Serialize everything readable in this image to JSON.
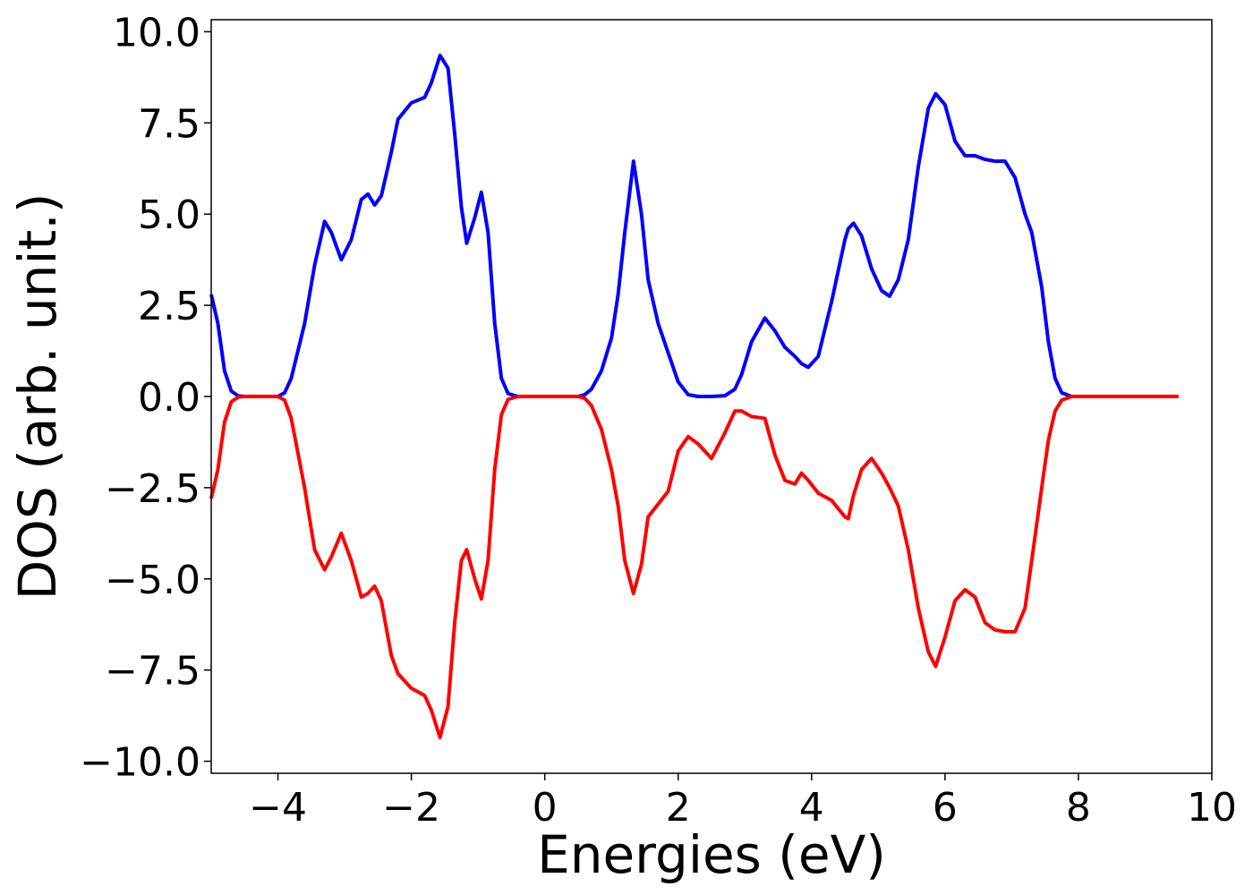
{
  "chart_data": {
    "type": "line",
    "xlabel": "Energies (eV)",
    "ylabel": "DOS (arb. unit.)",
    "x": [
      -5,
      -4.9,
      -4.8,
      -4.7,
      -4.6,
      -4.5,
      -4.0,
      -3.9,
      -3.8,
      -3.6,
      -3.45,
      -3.3,
      -3.2,
      -3.05,
      -2.9,
      -2.75,
      -2.65,
      -2.55,
      -2.45,
      -2.3,
      -2.2,
      -2.0,
      -1.8,
      -1.7,
      -1.57,
      -1.45,
      -1.35,
      -1.25,
      -1.17,
      -1.05,
      -0.95,
      -0.85,
      -0.75,
      -0.65,
      -0.55,
      -0.4,
      0.5,
      0.6,
      0.7,
      0.85,
      1.0,
      1.1,
      1.2,
      1.33,
      1.45,
      1.55,
      1.7,
      1.85,
      2.0,
      2.15,
      2.3,
      2.5,
      2.7,
      2.85,
      2.95,
      3.1,
      3.3,
      3.45,
      3.6,
      3.75,
      3.85,
      3.95,
      4.1,
      4.3,
      4.5,
      4.55,
      4.63,
      4.75,
      4.9,
      5.05,
      5.17,
      5.3,
      5.45,
      5.6,
      5.75,
      5.86,
      6.0,
      6.15,
      6.3,
      6.45,
      6.6,
      6.75,
      6.9,
      7.05,
      7.2,
      7.3,
      7.45,
      7.55,
      7.65,
      7.75,
      7.9,
      8.5,
      9.5
    ],
    "series": [
      {
        "color": "#0000ff",
        "values": [
          2.8,
          2.0,
          0.7,
          0.15,
          0.02,
          0,
          0,
          0.1,
          0.5,
          2.0,
          3.6,
          4.8,
          4.5,
          3.75,
          4.3,
          5.4,
          5.55,
          5.25,
          5.5,
          6.7,
          7.6,
          8.05,
          8.2,
          8.6,
          9.35,
          9.0,
          7.2,
          5.2,
          4.2,
          4.9,
          5.6,
          4.5,
          2.0,
          0.5,
          0.08,
          0,
          0,
          0.05,
          0.2,
          0.7,
          1.6,
          2.8,
          4.5,
          6.45,
          5.0,
          3.2,
          2.0,
          1.2,
          0.4,
          0.05,
          0,
          0,
          0.02,
          0.2,
          0.6,
          1.5,
          2.15,
          1.8,
          1.35,
          1.1,
          0.9,
          0.8,
          1.1,
          2.6,
          4.3,
          4.6,
          4.75,
          4.4,
          3.5,
          2.9,
          2.75,
          3.2,
          4.3,
          6.3,
          7.9,
          8.3,
          8.0,
          7.0,
          6.6,
          6.6,
          6.5,
          6.45,
          6.45,
          6.0,
          5.0,
          4.5,
          3.0,
          1.5,
          0.5,
          0.1,
          0,
          0,
          0
        ]
      },
      {
        "color": "#ff0000",
        "values": [
          -2.8,
          -2.0,
          -0.7,
          -0.15,
          -0.02,
          0,
          0,
          -0.1,
          -0.6,
          -2.5,
          -4.2,
          -4.75,
          -4.4,
          -3.75,
          -4.5,
          -5.5,
          -5.4,
          -5.2,
          -5.6,
          -7.1,
          -7.6,
          -8.0,
          -8.2,
          -8.6,
          -9.35,
          -8.5,
          -6.2,
          -4.5,
          -4.2,
          -5.0,
          -5.55,
          -4.5,
          -2.0,
          -0.5,
          -0.08,
          0,
          0,
          -0.05,
          -0.25,
          -0.9,
          -2.0,
          -3.0,
          -4.5,
          -5.4,
          -4.6,
          -3.3,
          -2.95,
          -2.6,
          -1.5,
          -1.1,
          -1.3,
          -1.7,
          -1.0,
          -0.4,
          -0.4,
          -0.55,
          -0.6,
          -1.6,
          -2.3,
          -2.4,
          -2.1,
          -2.3,
          -2.65,
          -2.85,
          -3.3,
          -3.35,
          -2.7,
          -2.0,
          -1.7,
          -2.1,
          -2.5,
          -3.0,
          -4.2,
          -5.8,
          -7.0,
          -7.4,
          -6.6,
          -5.6,
          -5.3,
          -5.5,
          -6.2,
          -6.4,
          -6.45,
          -6.45,
          -5.8,
          -4.5,
          -2.5,
          -1.2,
          -0.4,
          -0.1,
          0,
          0,
          0
        ]
      }
    ],
    "xlim": [
      -5,
      10
    ],
    "ylim": [
      -10.33,
      10.33
    ],
    "xticks": [
      {
        "value": -4,
        "label": "−4"
      },
      {
        "value": -2,
        "label": "−2"
      },
      0,
      2,
      4,
      6,
      8,
      10
    ],
    "yticks": [
      {
        "value": -10,
        "label": "−10.0"
      },
      {
        "value": -7.5,
        "label": "−7.5"
      },
      {
        "value": -5,
        "label": "−5.0"
      },
      {
        "value": -2.5,
        "label": "−2.5"
      },
      {
        "value": 0,
        "label": "0.0"
      },
      {
        "value": 2.5,
        "label": "2.5"
      },
      {
        "value": 5,
        "label": "5.0"
      },
      {
        "value": 7.5,
        "label": "7.5"
      },
      {
        "value": 10,
        "label": "10.0"
      }
    ],
    "grid": false
  }
}
